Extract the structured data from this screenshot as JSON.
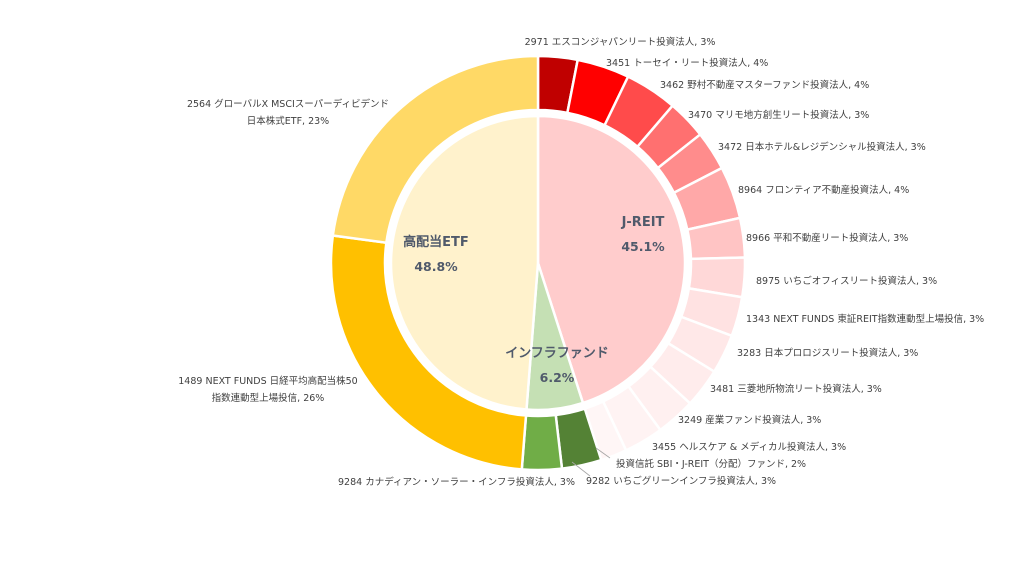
{
  "chart_data": {
    "type": "sunburst",
    "inner": [
      {
        "name": "J-REIT",
        "value_label": "45.1%",
        "value": 45.1,
        "color": "#ffcccc"
      },
      {
        "name": "インフラファンド",
        "value_label": "6.2%",
        "value": 6.2,
        "color": "#c5e0b4"
      },
      {
        "name": "高配当ETF",
        "value_label": "48.8%",
        "value": 48.8,
        "color": "#fff2cc"
      }
    ],
    "outer": [
      {
        "lines": [
          "2971 エスコンジャパンリート投資法人, 3%"
        ],
        "value": 3,
        "color": "#c00000"
      },
      {
        "lines": [
          "3451 トーセイ・リート投資法人, 4%"
        ],
        "value": 4,
        "color": "#ff0000"
      },
      {
        "lines": [
          "3462 野村不動産マスターファンド投資法人, 4%"
        ],
        "value": 4,
        "color": "#ff4b4b"
      },
      {
        "lines": [
          "3470 マリモ地方創生リート投資法人, 3%"
        ],
        "value": 3,
        "color": "#ff7070"
      },
      {
        "lines": [
          "3472 日本ホテル&レジデンシャル投資法人, 3%"
        ],
        "value": 3,
        "color": "#ff8c8c"
      },
      {
        "lines": [
          "8964 フロンティア不動産投資法人, 4%"
        ],
        "value": 4,
        "color": "#ffa8a8"
      },
      {
        "lines": [
          "8966 平和不動産リート投資法人, 3%"
        ],
        "value": 3,
        "color": "#ffc4c4"
      },
      {
        "lines": [
          "8975 いちごオフィスリート投資法人, 3%"
        ],
        "value": 3,
        "color": "#ffd8d8"
      },
      {
        "lines": [
          "1343 NEXT FUNDS 東証REIT指数連動型上場投信, 3%"
        ],
        "value": 3,
        "color": "#ffe2e2"
      },
      {
        "lines": [
          "3283 日本プロロジスリート投資法人, 3%"
        ],
        "value": 3,
        "color": "#ffe8e8"
      },
      {
        "lines": [
          "3481 三菱地所物流リート投資法人, 3%"
        ],
        "value": 3,
        "color": "#ffecec"
      },
      {
        "lines": [
          "3249 産業ファンド投資法人, 3%"
        ],
        "value": 3,
        "color": "#fff0f0"
      },
      {
        "lines": [
          "3455 ヘルスケア & メディカル投資法人, 3%"
        ],
        "value": 3,
        "color": "#fff3f3"
      },
      {
        "lines": [
          "投資信託 SBI・J-REIT（分配）ファンド, 2%"
        ],
        "value": 2,
        "color": "#fff6f6"
      },
      {
        "lines": [
          "9282 いちごグリーンインフラ投資法人, 3%"
        ],
        "value": 3,
        "color": "#548235"
      },
      {
        "lines": [
          "9284 カナディアン・ソーラー・インフラ投資法人, 3%"
        ],
        "value": 3,
        "color": "#70ad47"
      },
      {
        "lines": [
          "1489 NEXT FUNDS 日経平均高配当株50",
          "指数連動型上場投信, 26%"
        ],
        "value": 26,
        "color": "#ffc000"
      },
      {
        "lines": [
          "2564 グローバルX MSCIスーパーディビデンド",
          "日本株式ETF, 23%"
        ],
        "value": 23,
        "color": "#ffd966"
      }
    ]
  }
}
